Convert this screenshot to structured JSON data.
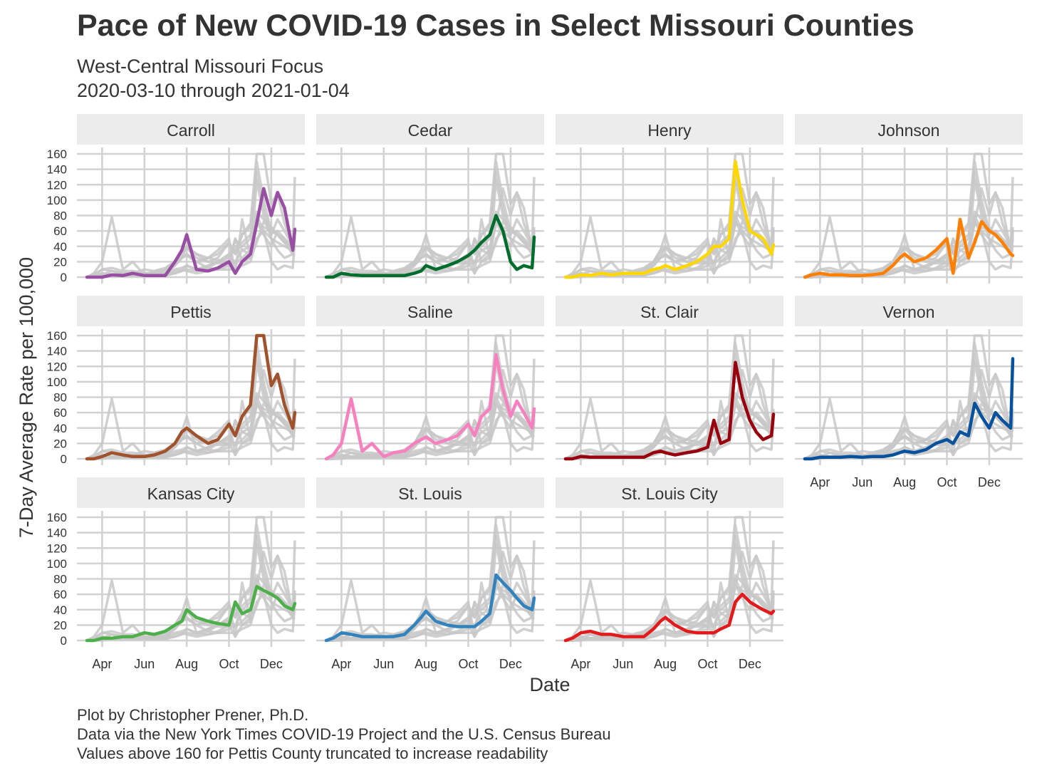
{
  "title": "Pace of New COVID-19 Cases in Select Missouri Counties",
  "subtitle_line1": "West-Central Missouri Focus",
  "subtitle_line2": "2020-03-10 through 2021-01-04",
  "caption_line1": "Plot by Christopher Prener, Ph.D.",
  "caption_line2": "Data via the New York Times COVID-19 Project and the U.S. Census Bureau",
  "caption_line3": "Values above 160 for Pettis County truncated to increase readability",
  "chart_data": {
    "type": "line",
    "layout": "small-multiples-4x3",
    "xlabel": "Date",
    "ylabel": "7-Day Average Rate per 100,000",
    "x_range": [
      "2020-03-10",
      "2021-01-04"
    ],
    "ylim": [
      0,
      160
    ],
    "y_ticks": [
      0,
      20,
      40,
      60,
      80,
      100,
      120,
      140,
      160
    ],
    "x_ticks": [
      "Apr",
      "Jun",
      "Aug",
      "Oct",
      "Dec"
    ],
    "x_tick_dates": [
      "2020-04-01",
      "2020-06-01",
      "2020-08-01",
      "2020-10-01",
      "2020-12-01"
    ],
    "background_color": "#c8c8c8",
    "grid": true,
    "dates": [
      "2020-03-10",
      "2020-03-20",
      "2020-04-01",
      "2020-04-15",
      "2020-05-01",
      "2020-05-15",
      "2020-06-01",
      "2020-06-15",
      "2020-07-01",
      "2020-07-15",
      "2020-07-25",
      "2020-08-01",
      "2020-08-15",
      "2020-09-01",
      "2020-09-15",
      "2020-10-01",
      "2020-10-10",
      "2020-10-20",
      "2020-11-01",
      "2020-11-10",
      "2020-11-20",
      "2020-12-01",
      "2020-12-10",
      "2020-12-20",
      "2021-01-01",
      "2021-01-04"
    ],
    "series": [
      {
        "name": "Carroll",
        "color": "#984ea3",
        "values": [
          0,
          0,
          0,
          3,
          2,
          5,
          2,
          2,
          2,
          20,
          35,
          55,
          10,
          8,
          12,
          20,
          5,
          20,
          30,
          70,
          115,
          80,
          110,
          90,
          35,
          62
        ]
      },
      {
        "name": "Cedar",
        "color": "#006d2c",
        "values": [
          0,
          0,
          5,
          3,
          2,
          2,
          2,
          2,
          2,
          5,
          8,
          15,
          10,
          15,
          20,
          28,
          35,
          45,
          55,
          80,
          60,
          20,
          10,
          15,
          12,
          52
        ]
      },
      {
        "name": "Henry",
        "color": "#ffd700",
        "values": [
          0,
          0,
          3,
          2,
          5,
          3,
          5,
          5,
          5,
          10,
          12,
          15,
          10,
          15,
          20,
          30,
          40,
          40,
          50,
          150,
          100,
          60,
          55,
          50,
          30,
          42
        ]
      },
      {
        "name": "Johnson",
        "color": "#ff7f00",
        "values": [
          0,
          3,
          5,
          3,
          3,
          2,
          2,
          3,
          5,
          15,
          25,
          30,
          20,
          25,
          35,
          50,
          5,
          75,
          25,
          45,
          72,
          60,
          55,
          45,
          30,
          28
        ]
      },
      {
        "name": "Pettis",
        "color": "#a0522d",
        "values": [
          0,
          0,
          3,
          8,
          5,
          3,
          3,
          5,
          10,
          20,
          35,
          40,
          30,
          20,
          25,
          45,
          30,
          55,
          70,
          160,
          160,
          95,
          110,
          70,
          40,
          60
        ]
      },
      {
        "name": "Saline",
        "color": "#f781bf",
        "values": [
          0,
          5,
          20,
          78,
          10,
          20,
          3,
          8,
          10,
          20,
          25,
          28,
          20,
          25,
          30,
          45,
          30,
          55,
          65,
          135,
          90,
          55,
          75,
          60,
          40,
          65
        ]
      },
      {
        "name": "St. Clair",
        "color": "#99000d",
        "values": [
          0,
          0,
          3,
          2,
          2,
          2,
          2,
          2,
          2,
          8,
          10,
          8,
          5,
          8,
          10,
          15,
          50,
          20,
          25,
          125,
          80,
          50,
          35,
          25,
          30,
          58
        ]
      },
      {
        "name": "Vernon",
        "color": "#08519c",
        "values": [
          0,
          0,
          2,
          2,
          2,
          3,
          2,
          3,
          3,
          5,
          8,
          10,
          8,
          12,
          20,
          25,
          20,
          35,
          30,
          72,
          55,
          40,
          60,
          50,
          40,
          130
        ]
      },
      {
        "name": "Kansas City",
        "color": "#4daf4a",
        "values": [
          0,
          0,
          3,
          3,
          5,
          5,
          10,
          8,
          12,
          20,
          25,
          40,
          30,
          25,
          22,
          20,
          50,
          35,
          40,
          70,
          65,
          60,
          55,
          45,
          40,
          48
        ]
      },
      {
        "name": "St. Louis",
        "color": "#3182bd",
        "values": [
          0,
          3,
          10,
          8,
          5,
          5,
          5,
          5,
          8,
          20,
          30,
          38,
          25,
          20,
          18,
          18,
          18,
          25,
          35,
          85,
          75,
          65,
          55,
          45,
          40,
          55
        ]
      },
      {
        "name": "St. Louis City",
        "color": "#e31a1c",
        "values": [
          0,
          3,
          10,
          12,
          8,
          8,
          5,
          5,
          5,
          15,
          25,
          30,
          20,
          12,
          10,
          10,
          10,
          15,
          20,
          50,
          60,
          50,
          45,
          40,
          35,
          38
        ]
      }
    ]
  }
}
